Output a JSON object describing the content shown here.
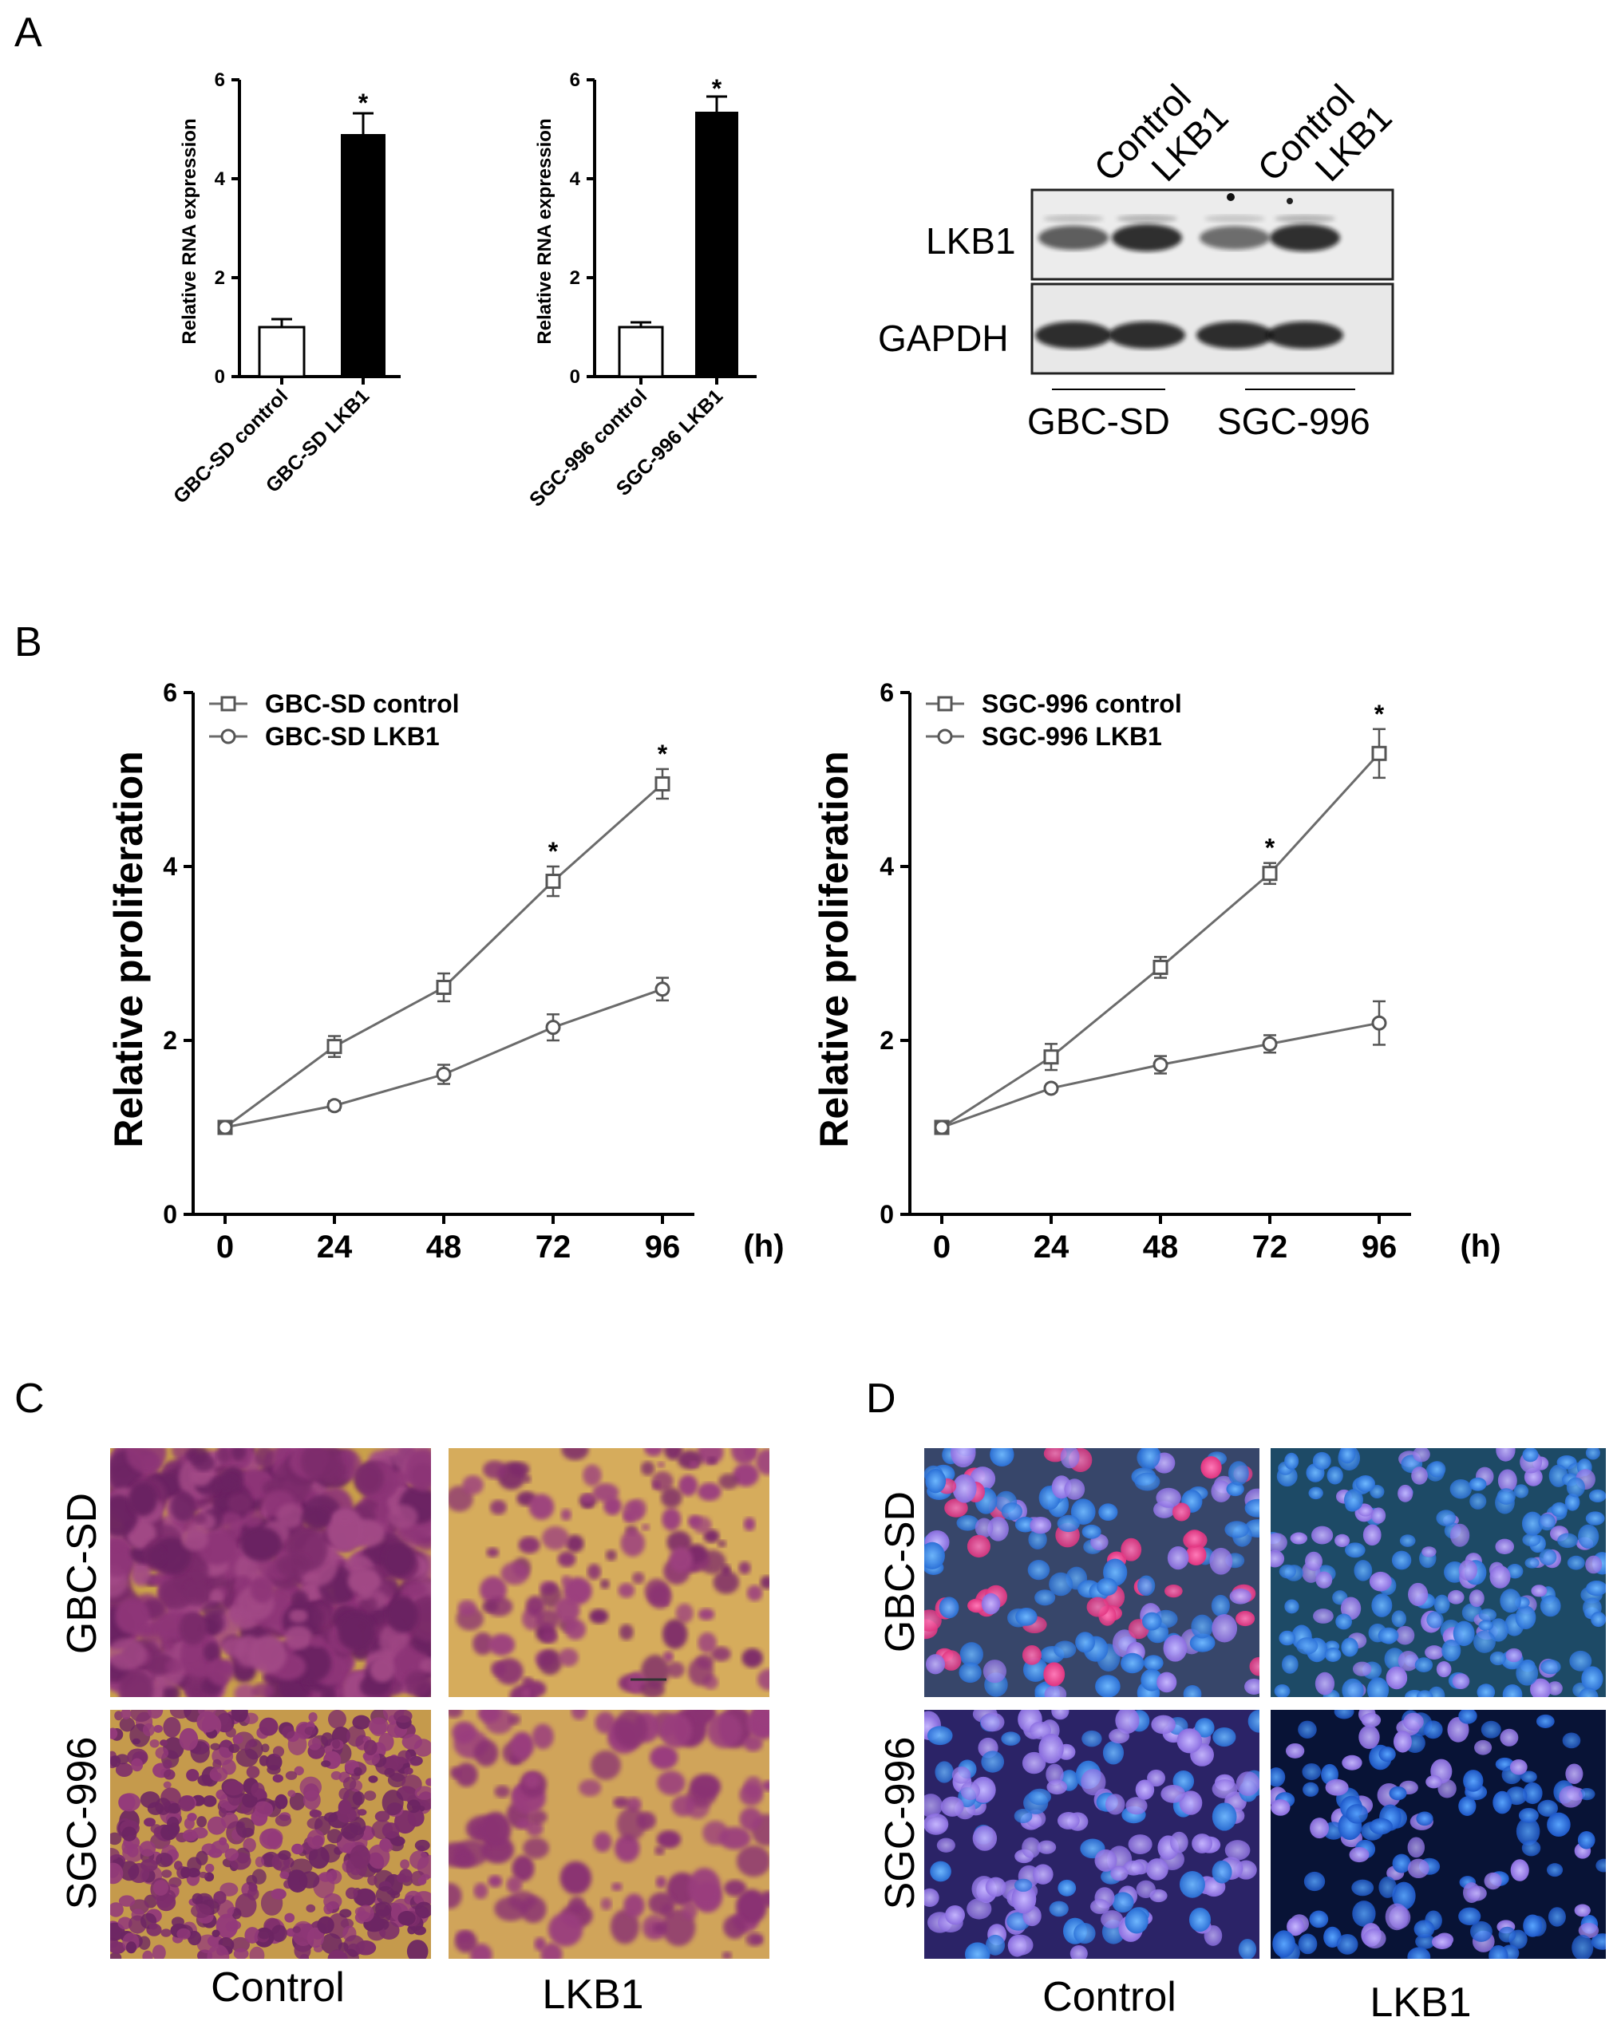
{
  "panels": {
    "A": "A",
    "B": "B",
    "C": "C",
    "D": "D"
  },
  "chart_data": [
    {
      "id": "A1",
      "type": "bar",
      "categories": [
        "GBC-SD control",
        "GBC-SD LKB1"
      ],
      "values": [
        1.0,
        4.9
      ],
      "errors": [
        0.15,
        0.42
      ],
      "significance": [
        "",
        "*"
      ],
      "ylabel": "Relative RNA expression",
      "ylim": [
        0,
        6
      ],
      "yticks": [
        "0",
        "2",
        "4",
        "6"
      ],
      "colors": [
        "#ffffff",
        "#000000"
      ]
    },
    {
      "id": "A2",
      "type": "bar",
      "categories": [
        "SGC-996 control",
        "SGC-996 LKB1"
      ],
      "values": [
        1.0,
        5.35
      ],
      "errors": [
        0.1,
        0.32
      ],
      "significance": [
        "",
        "*"
      ],
      "ylabel": "Relative RNA expression",
      "ylim": [
        0,
        6
      ],
      "yticks": [
        "0",
        "2",
        "4",
        "6"
      ],
      "colors": [
        "#ffffff",
        "#000000"
      ]
    },
    {
      "id": "B1",
      "type": "line",
      "x": [
        0,
        24,
        48,
        72,
        96
      ],
      "xunit": "(h)",
      "xticks": [
        "0",
        "24",
        "48",
        "72",
        "96"
      ],
      "yticks": [
        "0",
        "2",
        "4",
        "6"
      ],
      "ylabel": "Relative proliferation",
      "ylim": [
        0,
        6
      ],
      "legend": "top-left",
      "series": [
        {
          "name": "GBC-SD control",
          "marker": "square",
          "values": [
            1.0,
            1.93,
            2.61,
            3.83,
            4.95
          ],
          "errors": [
            0.04,
            0.12,
            0.16,
            0.17,
            0.17
          ]
        },
        {
          "name": "GBC-SD LKB1",
          "marker": "circle",
          "values": [
            1.0,
            1.25,
            1.61,
            2.15,
            2.59
          ],
          "errors": [
            0.04,
            0.05,
            0.11,
            0.15,
            0.13
          ]
        }
      ],
      "significance": [
        {
          "x": 72,
          "label": "*"
        },
        {
          "x": 96,
          "label": "*"
        }
      ]
    },
    {
      "id": "B2",
      "type": "line",
      "x": [
        0,
        24,
        48,
        72,
        96
      ],
      "xunit": "(h)",
      "xticks": [
        "0",
        "24",
        "48",
        "72",
        "96"
      ],
      "yticks": [
        "0",
        "2",
        "4",
        "6"
      ],
      "ylabel": "Relative proliferation",
      "ylim": [
        0,
        6
      ],
      "legend": "top-left",
      "series": [
        {
          "name": "SGC-996 control",
          "marker": "square",
          "values": [
            1.0,
            1.81,
            2.84,
            3.92,
            5.3
          ],
          "errors": [
            0.04,
            0.15,
            0.12,
            0.12,
            0.28
          ]
        },
        {
          "name": "SGC-996 LKB1",
          "marker": "circle",
          "values": [
            1.0,
            1.45,
            1.72,
            1.96,
            2.2
          ],
          "errors": [
            0.04,
            0.04,
            0.1,
            0.1,
            0.25
          ]
        }
      ],
      "significance": [
        {
          "x": 72,
          "label": "*"
        },
        {
          "x": 96,
          "label": "*"
        }
      ]
    }
  ],
  "blot": {
    "lanes": [
      "Control",
      "LKB1",
      "Control",
      "LKB1"
    ],
    "rows": [
      "LKB1",
      "GAPDH"
    ],
    "groups": [
      "GBC-SD",
      "SGC-996"
    ],
    "band_intensity": {
      "LKB1": [
        0.55,
        0.85,
        0.45,
        0.85
      ],
      "GAPDH": [
        1.0,
        1.0,
        1.0,
        1.0
      ]
    }
  },
  "panel_c": {
    "rows": [
      "GBC-SD",
      "SGC-996"
    ],
    "columns": [
      "Control",
      "LKB1"
    ]
  },
  "panel_d": {
    "rows": [
      "GBC-SD",
      "SGC-996"
    ],
    "columns": [
      "Control",
      "LKB1"
    ]
  }
}
